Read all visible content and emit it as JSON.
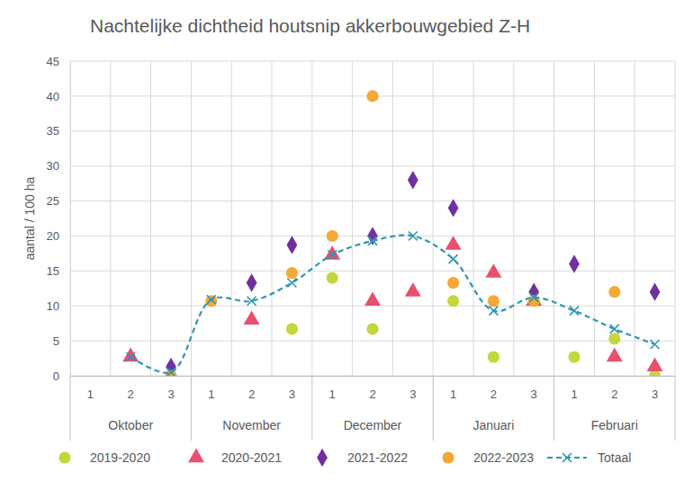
{
  "chart_data": {
    "type": "scatter",
    "title": "Nachtelijke dichtheid houtsnip akkerbouwgebied Z-H",
    "y_label": "aantal / 100 ha",
    "categories": [
      "1",
      "2",
      "3",
      "1",
      "2",
      "3",
      "1",
      "2",
      "3",
      "1",
      "2",
      "3",
      "1",
      "2",
      "3"
    ],
    "category_groups": [
      "Oktober",
      "November",
      "December",
      "Januari",
      "Februari"
    ],
    "ylim": [
      0,
      45
    ],
    "yticks": [
      0,
      5,
      10,
      15,
      20,
      25,
      30,
      35,
      40,
      45
    ],
    "grid": true,
    "legend": "bottom",
    "series": [
      {
        "name": "2019-2020",
        "color": "#c3d73a",
        "marker": "circle",
        "values": [
          null,
          null,
          null,
          null,
          null,
          6.7,
          14,
          6.7,
          null,
          10.7,
          2.7,
          null,
          2.7,
          5.3,
          0
        ]
      },
      {
        "name": "2020-2021",
        "color": "#e8506e",
        "marker": "triangle",
        "values": [
          null,
          2.7,
          null,
          null,
          8,
          null,
          17.3,
          10.7,
          12,
          18.7,
          14.7,
          10.7,
          null,
          2.7,
          1.3
        ]
      },
      {
        "name": "2021-2022",
        "color": "#7030a0",
        "marker": "diamond",
        "values": [
          null,
          null,
          1.3,
          null,
          13.3,
          18.7,
          null,
          20,
          28,
          24,
          null,
          12,
          16,
          null,
          12
        ]
      },
      {
        "name": "2022-2023",
        "color": "#f5a833",
        "marker": "circle",
        "values": [
          null,
          null,
          0,
          10.7,
          null,
          14.7,
          20,
          40,
          null,
          13.3,
          10.7,
          10.7,
          null,
          12,
          null
        ]
      },
      {
        "name": "Totaal",
        "color": "#2e96b4",
        "marker": "x",
        "type": "line",
        "line_style": "dashed",
        "values": [
          null,
          2.7,
          0.5,
          10.9,
          10.7,
          13.3,
          17.3,
          19.3,
          20,
          16.7,
          9.3,
          11.2,
          9.3,
          6.7,
          4.5
        ]
      }
    ]
  }
}
